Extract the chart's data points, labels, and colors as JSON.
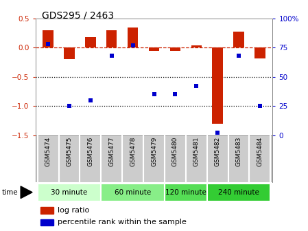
{
  "title": "GDS295 / 2463",
  "samples": [
    "GSM5474",
    "GSM5475",
    "GSM5476",
    "GSM5477",
    "GSM5478",
    "GSM5479",
    "GSM5480",
    "GSM5481",
    "GSM5482",
    "GSM5483",
    "GSM5484"
  ],
  "log_ratio": [
    0.3,
    -0.2,
    0.18,
    0.3,
    0.35,
    -0.05,
    -0.05,
    0.04,
    -1.3,
    0.28,
    -0.18
  ],
  "percentile": [
    78,
    25,
    30,
    68,
    77,
    35,
    35,
    42,
    2,
    68,
    25
  ],
  "bar_color": "#cc2200",
  "dot_color": "#0000cc",
  "left_ylim": [
    -1.5,
    0.5
  ],
  "right_ylim": [
    0,
    100
  ],
  "left_yticks": [
    -1.5,
    -1.0,
    -0.5,
    0.0,
    0.5
  ],
  "right_yticks": [
    0,
    25,
    50,
    75,
    100
  ],
  "right_yticklabels": [
    "0",
    "25",
    "50",
    "75",
    "100%"
  ],
  "hline_y": 0.0,
  "dotted_lines": [
    -0.5,
    -1.0
  ],
  "groups": [
    {
      "label": "30 minute",
      "start": 0,
      "end": 2,
      "color": "#ccffcc"
    },
    {
      "label": "60 minute",
      "start": 3,
      "end": 5,
      "color": "#88ee88"
    },
    {
      "label": "120 minute",
      "start": 6,
      "end": 7,
      "color": "#55dd55"
    },
    {
      "label": "240 minute",
      "start": 8,
      "end": 10,
      "color": "#33cc33"
    }
  ],
  "time_label": "time",
  "legend_bar_label": "log ratio",
  "legend_dot_label": "percentile rank within the sample",
  "bg_color": "#ffffff",
  "plot_bg_color": "#ffffff",
  "tick_label_color_left": "#cc2200",
  "tick_label_color_right": "#0000cc",
  "sample_bg": "#cccccc",
  "bar_width": 0.5
}
